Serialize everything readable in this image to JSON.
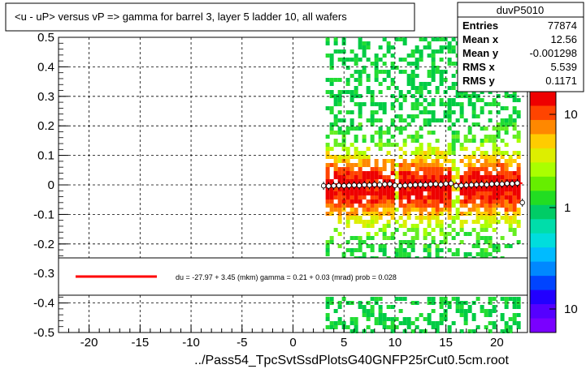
{
  "title": "<u - uP>       versus   vP =>  gamma for barrel 3, layer 5 ladder 10, all wafers",
  "footer": "../Pass54_TpcSvtSsdPlotsG40GNFP25rCut0.5cm.root",
  "stats": {
    "name": "duvP5010",
    "rows": [
      {
        "label": "Entries",
        "value": "77874"
      },
      {
        "label": "Mean x",
        "value": "12.56"
      },
      {
        "label": "Mean y",
        "value": "-0.001298"
      },
      {
        "label": "RMS x",
        "value": "5.539"
      },
      {
        "label": "RMS y",
        "value": "0.1171"
      }
    ]
  },
  "fit_text": "du =  -27.97 +  3.45 (mkm) gamma =    0.21 +  0.03 (mrad) prob = 0.028",
  "colors": {
    "fit_line": "#ff0000",
    "frame": "#000000"
  },
  "chart_data": {
    "type": "heatmap",
    "x_ticks": [
      "-20",
      "-15",
      "-10",
      "-5",
      "0",
      "5",
      "10",
      "15",
      "20"
    ],
    "y_ticks": [
      "-0.5",
      "-0.4",
      "-0.3",
      "-0.2",
      "-0.1",
      "0",
      "0.1",
      "0.2",
      "0.3",
      "0.4",
      "0.5"
    ],
    "xlim": [
      -23,
      23
    ],
    "ylim": [
      -0.5,
      0.5
    ],
    "z_ticks": [
      "10",
      "1",
      "10"
    ],
    "grid": true,
    "profile": {
      "x": [
        3,
        3.5,
        4,
        4.5,
        5,
        5.5,
        6,
        6.5,
        7,
        7.5,
        8,
        8.5,
        9,
        9.5,
        10,
        10.5,
        11,
        11.5,
        12,
        12.5,
        13,
        13.5,
        14,
        14.5,
        15,
        15.5,
        16,
        16.5,
        17,
        17.5,
        18,
        18.5,
        19,
        19.5,
        20,
        20.5,
        21,
        21.5,
        22,
        22.5
      ],
      "y": [
        -0.003,
        -0.004,
        -0.003,
        -0.002,
        -0.003,
        -0.002,
        -0.001,
        -0.002,
        0.0,
        -0.001,
        0.001,
        0.0,
        0.002,
        0.003,
        -0.002,
        -0.003,
        -0.002,
        -0.001,
        0.0,
        0.001,
        0.0,
        0.002,
        0.003,
        0.001,
        0.004,
        0.005,
        -0.003,
        -0.002,
        -0.001,
        0.0,
        0.001,
        0.002,
        0.001,
        0.003,
        0.004,
        0.003,
        0.005,
        0.004,
        0.006,
        -0.06
      ]
    }
  }
}
